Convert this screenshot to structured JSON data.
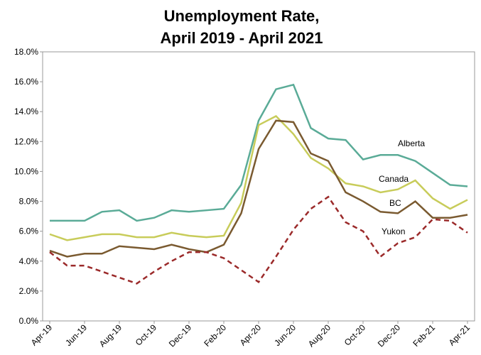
{
  "chart_data": {
    "type": "line",
    "title": [
      "Unemployment Rate,",
      "April 2019 - April 2021"
    ],
    "categories": [
      "Apr-19",
      null,
      "Jun-19",
      null,
      "Aug-19",
      null,
      "Oct-19",
      null,
      "Dec-19",
      null,
      "Feb-20",
      null,
      "Apr-20",
      null,
      "Jun-20",
      null,
      "Aug-20",
      null,
      "Oct-20",
      null,
      "Dec-20",
      null,
      "Feb-21",
      null,
      "Apr-21"
    ],
    "series": [
      {
        "name": "Alberta",
        "color": "#5aab97",
        "dash": false,
        "values": [
          6.7,
          6.7,
          6.7,
          7.3,
          7.4,
          6.7,
          6.9,
          7.4,
          7.3,
          7.4,
          7.5,
          9.1,
          13.4,
          15.5,
          15.8,
          12.9,
          12.2,
          12.1,
          10.8,
          11.1,
          11.1,
          10.7,
          9.9,
          9.1,
          9.0
        ]
      },
      {
        "name": "Canada",
        "color": "#c8cc5a",
        "dash": false,
        "values": [
          5.8,
          5.4,
          5.6,
          5.8,
          5.8,
          5.6,
          5.6,
          5.9,
          5.7,
          5.6,
          5.7,
          7.9,
          13.1,
          13.7,
          12.5,
          10.9,
          10.2,
          9.2,
          9.0,
          8.6,
          8.8,
          9.4,
          8.2,
          7.5,
          8.1
        ]
      },
      {
        "name": "BC",
        "color": "#7a5a30",
        "dash": false,
        "values": [
          4.7,
          4.3,
          4.5,
          4.5,
          5.0,
          4.9,
          4.8,
          5.1,
          4.8,
          4.6,
          5.1,
          7.2,
          11.5,
          13.4,
          13.3,
          11.2,
          10.7,
          8.6,
          8.0,
          7.3,
          7.2,
          8.0,
          6.9,
          6.9,
          7.1
        ]
      },
      {
        "name": "Yukon",
        "color": "#9b2a2a",
        "dash": true,
        "values": [
          4.6,
          3.7,
          3.7,
          3.3,
          2.9,
          2.5,
          3.3,
          4.0,
          4.6,
          4.6,
          4.2,
          3.4,
          2.6,
          4.3,
          6.1,
          7.5,
          8.3,
          6.6,
          6.0,
          4.3,
          5.2,
          5.6,
          6.8,
          6.7,
          5.9
        ]
      }
    ],
    "ylim": [
      0,
      18
    ],
    "yticks": [
      {
        "value": 0,
        "label": "0.0%"
      },
      {
        "value": 2,
        "label": "2.0%"
      },
      {
        "value": 4,
        "label": "4.0%"
      },
      {
        "value": 6,
        "label": "6.0%"
      },
      {
        "value": 8,
        "label": "8.0%"
      },
      {
        "value": 10,
        "label": "10.0%"
      },
      {
        "value": 12,
        "label": "12.0%"
      },
      {
        "value": 14,
        "label": "14.0%"
      },
      {
        "value": 16,
        "label": "16.0%"
      },
      {
        "value": 18,
        "label": "18.0%"
      }
    ],
    "grid": false
  }
}
